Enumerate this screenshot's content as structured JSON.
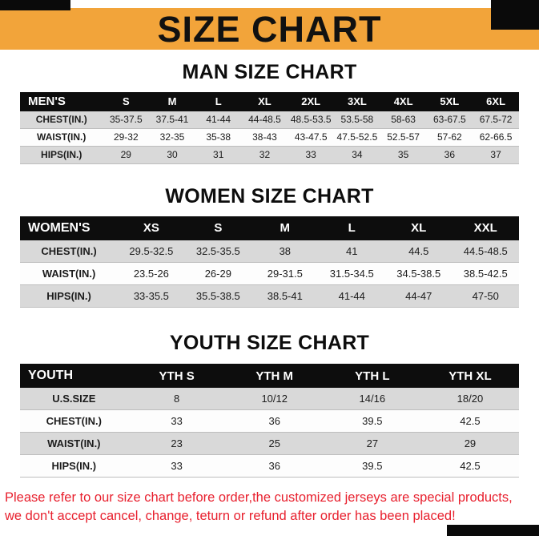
{
  "banner": {
    "title": "SIZE CHART",
    "bg_color": "#F2A43A"
  },
  "chart_data": [
    {
      "type": "table",
      "title": "MAN SIZE CHART",
      "columns": [
        "MEN'S",
        "S",
        "M",
        "L",
        "XL",
        "2XL",
        "3XL",
        "4XL",
        "5XL",
        "6XL"
      ],
      "rows": [
        [
          "CHEST(IN.)",
          "35-37.5",
          "37.5-41",
          "41-44",
          "44-48.5",
          "48.5-53.5",
          "53.5-58",
          "58-63",
          "63-67.5",
          "67.5-72"
        ],
        [
          "WAIST(IN.)",
          "29-32",
          "32-35",
          "35-38",
          "38-43",
          "43-47.5",
          "47.5-52.5",
          "52.5-57",
          "57-62",
          "62-66.5"
        ],
        [
          "HIPS(IN.)",
          "29",
          "30",
          "31",
          "32",
          "33",
          "34",
          "35",
          "36",
          "37"
        ]
      ]
    },
    {
      "type": "table",
      "title": "WOMEN SIZE CHART",
      "columns": [
        "WOMEN'S",
        "XS",
        "S",
        "M",
        "L",
        "XL",
        "XXL"
      ],
      "rows": [
        [
          "CHEST(IN.)",
          "29.5-32.5",
          "32.5-35.5",
          "38",
          "41",
          "44.5",
          "44.5-48.5"
        ],
        [
          "WAIST(IN.)",
          "23.5-26",
          "26-29",
          "29-31.5",
          "31.5-34.5",
          "34.5-38.5",
          "38.5-42.5"
        ],
        [
          "HIPS(IN.)",
          "33-35.5",
          "35.5-38.5",
          "38.5-41",
          "41-44",
          "44-47",
          "47-50"
        ]
      ]
    },
    {
      "type": "table",
      "title": "YOUTH SIZE CHART",
      "columns": [
        "YOUTH",
        "YTH S",
        "YTH M",
        "YTH L",
        "YTH XL"
      ],
      "rows": [
        [
          "U.S.SIZE",
          "8",
          "10/12",
          "14/16",
          "18/20"
        ],
        [
          "CHEST(IN.)",
          "33",
          "36",
          "39.5",
          "42.5"
        ],
        [
          "WAIST(IN.)",
          "23",
          "25",
          "27",
          "29"
        ],
        [
          "HIPS(IN.)",
          "33",
          "36",
          "39.5",
          "42.5"
        ]
      ]
    }
  ],
  "footer": {
    "line1": "Please refer to our size chart before order,the customized jerseys are special products,",
    "line2": "we don't accept cancel, change, teturn or refund after order has been placed!",
    "color": "#E8202E"
  },
  "colors": {
    "banner_bg": "#F2A43A",
    "table_header_bg": "#0d0d0d",
    "row_stripe_gray": "#d9d9d9",
    "row_stripe_white": "#fdfdfd",
    "footer_red": "#E8202E"
  }
}
